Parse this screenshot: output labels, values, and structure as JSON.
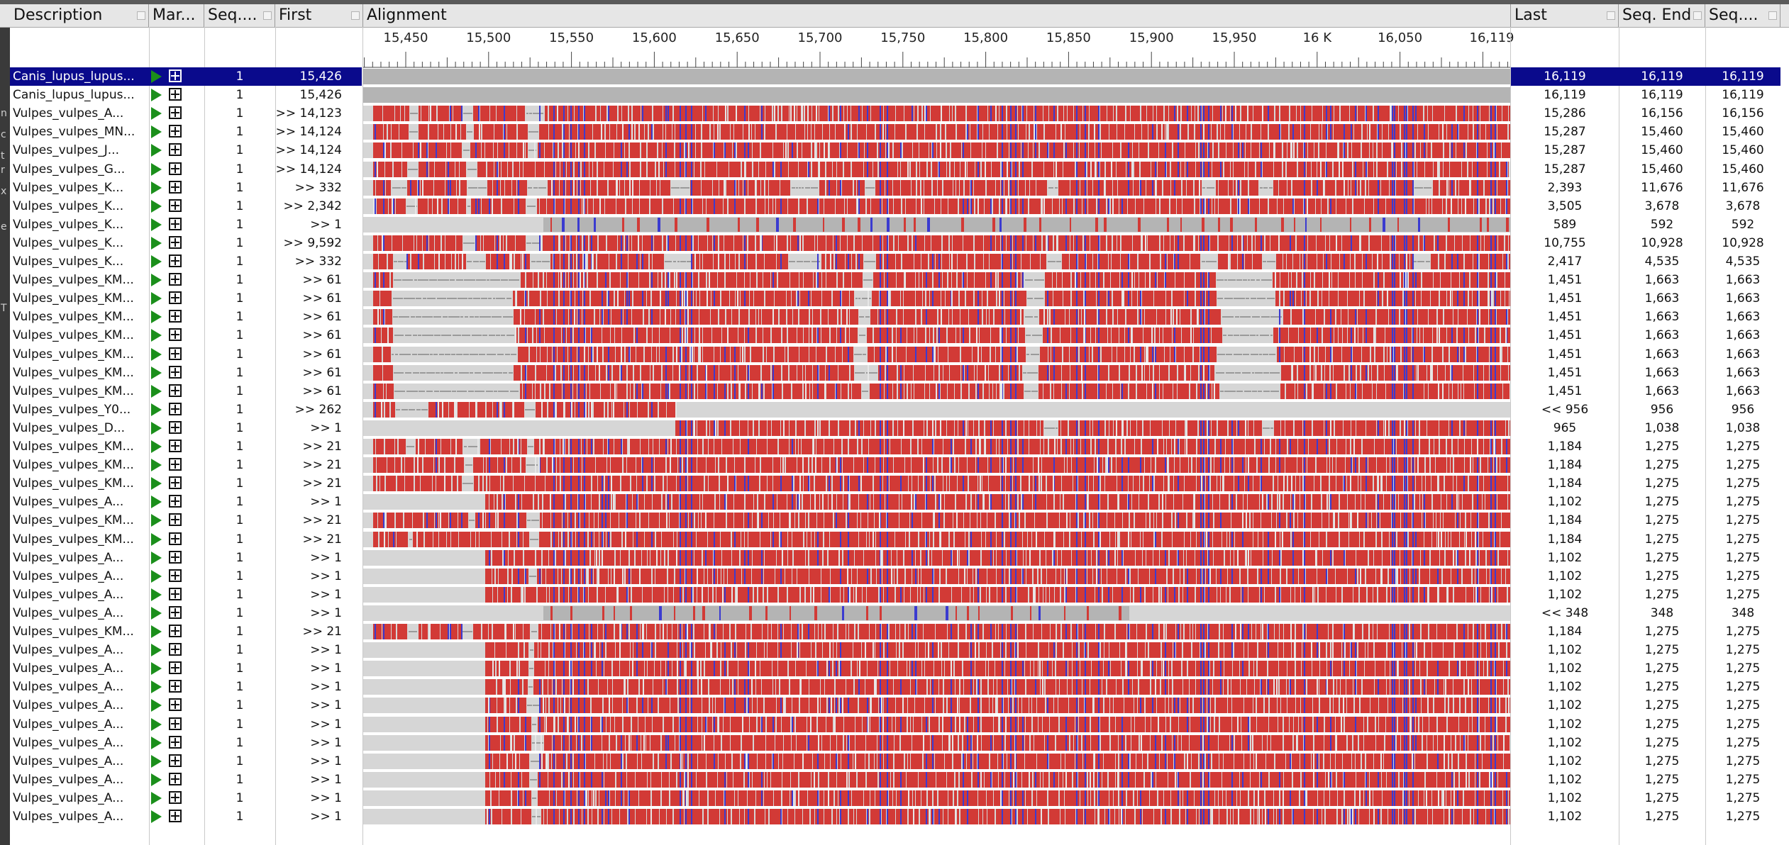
{
  "columns": {
    "description": "Description",
    "markers": "Mar...",
    "seq_start": "Seq....",
    "first": "First",
    "alignment": "Alignment",
    "last": "Last",
    "seq_end": "Seq. End",
    "seq_len": "Seq...."
  },
  "ruler": {
    "labels": [
      "15,450",
      "15,500",
      "15,550",
      "15,600",
      "15,650",
      "15,700",
      "15,750",
      "15,800",
      "15,850",
      "15,900",
      "15,950",
      "16 K",
      "16,050",
      "16,119"
    ]
  },
  "gutter_letters": [
    "n",
    "c",
    "t",
    "r",
    "x",
    "e",
    "T"
  ],
  "colors": {
    "selected_row": "#0a0a8c",
    "match": "#d23a36",
    "gap": "#d6d6d6",
    "mismatch": "#b4b4b4",
    "variant": "#3b3bd0",
    "play_icon": "#1b8f1b"
  },
  "rows": [
    {
      "desc": "Canis_lupus_lupus...",
      "seq": "1",
      "first": "15,426",
      "last": "16,119",
      "send": "16,119",
      "slen": "16,119",
      "selected": true,
      "pattern": "ref"
    },
    {
      "desc": "Canis_lupus_lupus...",
      "seq": "1",
      "first": "15,426",
      "last": "16,119",
      "send": "16,119",
      "slen": "16,119",
      "pattern": "ref"
    },
    {
      "desc": "Vulpes_vulpes_A...",
      "seq": "1",
      "first": ">> 14,123",
      "last": "15,286",
      "send": "16,156",
      "slen": "16,156",
      "pattern": "full"
    },
    {
      "desc": "Vulpes_vulpes_MN...",
      "seq": "1",
      "first": ">> 14,124",
      "last": "15,287",
      "send": "15,460",
      "slen": "15,460",
      "pattern": "full"
    },
    {
      "desc": "Vulpes_vulpes_J...",
      "seq": "1",
      "first": ">> 14,124",
      "last": "15,287",
      "send": "15,460",
      "slen": "15,460",
      "pattern": "full"
    },
    {
      "desc": "Vulpes_vulpes_G...",
      "seq": "1",
      "first": ">> 14,124",
      "last": "15,287",
      "send": "15,460",
      "slen": "15,460",
      "pattern": "full"
    },
    {
      "desc": "Vulpes_vulpes_K...",
      "seq": "1",
      "first": ">> 332",
      "last": "2,393",
      "send": "11,676",
      "slen": "11,676",
      "pattern": "gappy"
    },
    {
      "desc": "Vulpes_vulpes_K...",
      "seq": "1",
      "first": ">> 2,342",
      "last": "3,505",
      "send": "3,678",
      "slen": "3,678",
      "pattern": "full"
    },
    {
      "desc": "Vulpes_vulpes_K...",
      "seq": "1",
      "first": ">> 1",
      "last": "589",
      "send": "592",
      "slen": "592",
      "pattern": "grey"
    },
    {
      "desc": "Vulpes_vulpes_K...",
      "seq": "1",
      "first": ">> 9,592",
      "last": "10,755",
      "send": "10,928",
      "slen": "10,928",
      "pattern": "full"
    },
    {
      "desc": "Vulpes_vulpes_K...",
      "seq": "1",
      "first": ">> 332",
      "last": "2,417",
      "send": "4,535",
      "slen": "4,535",
      "pattern": "gappy"
    },
    {
      "desc": "Vulpes_vulpes_KM...",
      "seq": "1",
      "first": ">> 61",
      "last": "1,451",
      "send": "1,663",
      "slen": "1,663",
      "pattern": "km61"
    },
    {
      "desc": "Vulpes_vulpes_KM...",
      "seq": "1",
      "first": ">> 61",
      "last": "1,451",
      "send": "1,663",
      "slen": "1,663",
      "pattern": "km61"
    },
    {
      "desc": "Vulpes_vulpes_KM...",
      "seq": "1",
      "first": ">> 61",
      "last": "1,451",
      "send": "1,663",
      "slen": "1,663",
      "pattern": "km61"
    },
    {
      "desc": "Vulpes_vulpes_KM...",
      "seq": "1",
      "first": ">> 61",
      "last": "1,451",
      "send": "1,663",
      "slen": "1,663",
      "pattern": "km61"
    },
    {
      "desc": "Vulpes_vulpes_KM...",
      "seq": "1",
      "first": ">> 61",
      "last": "1,451",
      "send": "1,663",
      "slen": "1,663",
      "pattern": "km61"
    },
    {
      "desc": "Vulpes_vulpes_KM...",
      "seq": "1",
      "first": ">> 61",
      "last": "1,451",
      "send": "1,663",
      "slen": "1,663",
      "pattern": "km61"
    },
    {
      "desc": "Vulpes_vulpes_KM...",
      "seq": "1",
      "first": ">> 61",
      "last": "1,451",
      "send": "1,663",
      "slen": "1,663",
      "pattern": "km61"
    },
    {
      "desc": "Vulpes_vulpes_Y0...",
      "seq": "1",
      "first": ">> 262",
      "last": "<< 956",
      "send": "956",
      "slen": "956",
      "pattern": "short_left"
    },
    {
      "desc": "Vulpes_vulpes_D...",
      "seq": "1",
      "first": ">> 1",
      "last": "965",
      "send": "1,038",
      "slen": "1,038",
      "pattern": "right_half"
    },
    {
      "desc": "Vulpes_vulpes_KM...",
      "seq": "1",
      "first": ">> 21",
      "last": "1,184",
      "send": "1,275",
      "slen": "1,275",
      "pattern": "full"
    },
    {
      "desc": "Vulpes_vulpes_KM...",
      "seq": "1",
      "first": ">> 21",
      "last": "1,184",
      "send": "1,275",
      "slen": "1,275",
      "pattern": "full"
    },
    {
      "desc": "Vulpes_vulpes_KM...",
      "seq": "1",
      "first": ">> 21",
      "last": "1,184",
      "send": "1,275",
      "slen": "1,275",
      "pattern": "full"
    },
    {
      "desc": "Vulpes_vulpes_A...",
      "seq": "1",
      "first": ">> 1",
      "last": "1,102",
      "send": "1,275",
      "slen": "1,275",
      "pattern": "start_late"
    },
    {
      "desc": "Vulpes_vulpes_KM...",
      "seq": "1",
      "first": ">> 21",
      "last": "1,184",
      "send": "1,275",
      "slen": "1,275",
      "pattern": "full"
    },
    {
      "desc": "Vulpes_vulpes_KM...",
      "seq": "1",
      "first": ">> 21",
      "last": "1,184",
      "send": "1,275",
      "slen": "1,275",
      "pattern": "full"
    },
    {
      "desc": "Vulpes_vulpes_A...",
      "seq": "1",
      "first": ">> 1",
      "last": "1,102",
      "send": "1,275",
      "slen": "1,275",
      "pattern": "start_late"
    },
    {
      "desc": "Vulpes_vulpes_A...",
      "seq": "1",
      "first": ">> 1",
      "last": "1,102",
      "send": "1,275",
      "slen": "1,275",
      "pattern": "start_late"
    },
    {
      "desc": "Vulpes_vulpes_A...",
      "seq": "1",
      "first": ">> 1",
      "last": "1,102",
      "send": "1,275",
      "slen": "1,275",
      "pattern": "start_late"
    },
    {
      "desc": "Vulpes_vulpes_A...",
      "seq": "1",
      "first": ">> 1",
      "last": "<< 348",
      "send": "348",
      "slen": "348",
      "pattern": "grey_short"
    },
    {
      "desc": "Vulpes_vulpes_KM...",
      "seq": "1",
      "first": ">> 21",
      "last": "1,184",
      "send": "1,275",
      "slen": "1,275",
      "pattern": "full"
    },
    {
      "desc": "Vulpes_vulpes_A...",
      "seq": "1",
      "first": ">> 1",
      "last": "1,102",
      "send": "1,275",
      "slen": "1,275",
      "pattern": "start_late"
    },
    {
      "desc": "Vulpes_vulpes_A...",
      "seq": "1",
      "first": ">> 1",
      "last": "1,102",
      "send": "1,275",
      "slen": "1,275",
      "pattern": "start_late"
    },
    {
      "desc": "Vulpes_vulpes_A...",
      "seq": "1",
      "first": ">> 1",
      "last": "1,102",
      "send": "1,275",
      "slen": "1,275",
      "pattern": "start_late"
    },
    {
      "desc": "Vulpes_vulpes_A...",
      "seq": "1",
      "first": ">> 1",
      "last": "1,102",
      "send": "1,275",
      "slen": "1,275",
      "pattern": "start_late"
    },
    {
      "desc": "Vulpes_vulpes_A...",
      "seq": "1",
      "first": ">> 1",
      "last": "1,102",
      "send": "1,275",
      "slen": "1,275",
      "pattern": "start_late"
    },
    {
      "desc": "Vulpes_vulpes_A...",
      "seq": "1",
      "first": ">> 1",
      "last": "1,102",
      "send": "1,275",
      "slen": "1,275",
      "pattern": "start_late"
    },
    {
      "desc": "Vulpes_vulpes_A...",
      "seq": "1",
      "first": ">> 1",
      "last": "1,102",
      "send": "1,275",
      "slen": "1,275",
      "pattern": "start_late"
    },
    {
      "desc": "Vulpes_vulpes_A...",
      "seq": "1",
      "first": ">> 1",
      "last": "1,102",
      "send": "1,275",
      "slen": "1,275",
      "pattern": "start_late"
    },
    {
      "desc": "Vulpes_vulpes_A...",
      "seq": "1",
      "first": ">> 1",
      "last": "1,102",
      "send": "1,275",
      "slen": "1,275",
      "pattern": "start_late"
    },
    {
      "desc": "Vulpes_vulpes_A...",
      "seq": "1",
      "first": ">> 1",
      "last": "1,102",
      "send": "1,275",
      "slen": "1,275",
      "pattern": "start_late"
    }
  ]
}
